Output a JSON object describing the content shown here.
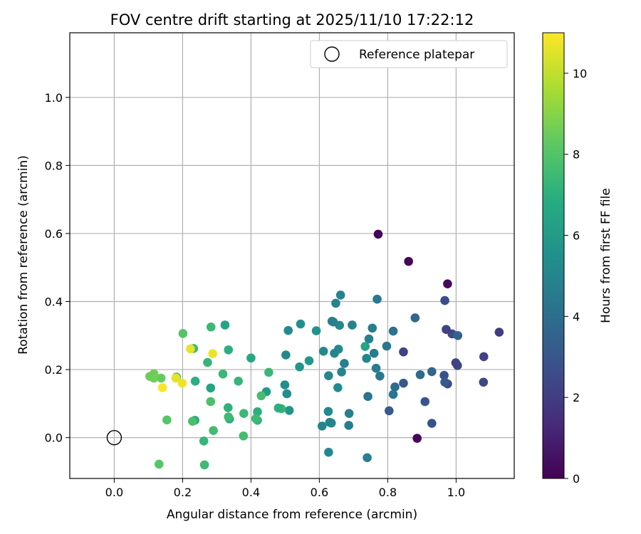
{
  "chart_data": {
    "type": "scatter",
    "title": "FOV centre drift starting at 2025/11/10 17:22:12",
    "xlabel": "Angular distance from reference (arcmin)",
    "ylabel": "Rotation from reference (arcmin)",
    "xlim": [
      -0.13,
      1.17
    ],
    "ylim": [
      -0.12,
      1.19
    ],
    "xticks": [
      "0.0",
      "0.2",
      "0.4",
      "0.6",
      "0.8",
      "1.0"
    ],
    "yticks": [
      "0.0",
      "0.2",
      "0.4",
      "0.6",
      "0.8",
      "1.0"
    ],
    "grid": true,
    "legend": {
      "position": "top-right",
      "entries": [
        "Reference platepar"
      ]
    },
    "reference_point": {
      "x": 0.0,
      "y": 0.0
    },
    "colorbar": {
      "label": "Hours from first FF file",
      "range": [
        0,
        11
      ],
      "ticks": [
        "0",
        "2",
        "4",
        "6",
        "8",
        "10"
      ],
      "colormap": "viridis"
    },
    "series": [
      {
        "points": [
          {
            "x": 0.772,
            "y": 0.598,
            "h": 0.1
          },
          {
            "x": 0.861,
            "y": 0.518,
            "h": 0.2
          },
          {
            "x": 0.975,
            "y": 0.452,
            "h": 0.3
          },
          {
            "x": 0.886,
            "y": -0.002,
            "h": 0.2
          },
          {
            "x": 1.126,
            "y": 0.31,
            "h": 2.0
          },
          {
            "x": 1.081,
            "y": 0.238,
            "h": 2.2
          },
          {
            "x": 1.08,
            "y": 0.163,
            "h": 2.4
          },
          {
            "x": 1.004,
            "y": 0.212,
            "h": 2.3
          },
          {
            "x": 0.999,
            "y": 0.22,
            "h": 2.2
          },
          {
            "x": 0.988,
            "y": 0.305,
            "h": 2.5
          },
          {
            "x": 0.971,
            "y": 0.318,
            "h": 2.1
          },
          {
            "x": 0.967,
            "y": 0.403,
            "h": 2.6
          },
          {
            "x": 0.965,
            "y": 0.183,
            "h": 2.8
          },
          {
            "x": 0.975,
            "y": 0.158,
            "h": 2.4
          },
          {
            "x": 0.909,
            "y": 0.106,
            "h": 2.9
          },
          {
            "x": 0.929,
            "y": 0.042,
            "h": 2.8
          },
          {
            "x": 0.846,
            "y": 0.252,
            "h": 2.2
          },
          {
            "x": 0.846,
            "y": 0.16,
            "h": 3.0
          },
          {
            "x": 0.804,
            "y": 0.079,
            "h": 3.2
          },
          {
            "x": 0.967,
            "y": 0.163,
            "h": 3.1
          },
          {
            "x": 1.005,
            "y": 0.3,
            "h": 3.5
          },
          {
            "x": 0.929,
            "y": 0.194,
            "h": 3.6
          },
          {
            "x": 0.895,
            "y": 0.185,
            "h": 3.8
          },
          {
            "x": 0.88,
            "y": 0.352,
            "h": 3.7
          },
          {
            "x": 0.821,
            "y": 0.149,
            "h": 4.0
          },
          {
            "x": 0.816,
            "y": 0.313,
            "h": 4.2
          },
          {
            "x": 0.816,
            "y": 0.127,
            "h": 4.3
          },
          {
            "x": 0.797,
            "y": 0.269,
            "h": 4.4
          },
          {
            "x": 0.777,
            "y": 0.181,
            "h": 4.5
          },
          {
            "x": 0.769,
            "y": 0.407,
            "h": 4.5
          },
          {
            "x": 0.766,
            "y": 0.204,
            "h": 4.6
          },
          {
            "x": 0.76,
            "y": 0.248,
            "h": 4.7
          },
          {
            "x": 0.755,
            "y": 0.322,
            "h": 4.6
          },
          {
            "x": 0.745,
            "y": 0.29,
            "h": 4.8
          },
          {
            "x": 0.742,
            "y": 0.121,
            "h": 4.2
          },
          {
            "x": 0.738,
            "y": 0.233,
            "h": 5.0
          },
          {
            "x": 0.74,
            "y": -0.059,
            "h": 4.8
          },
          {
            "x": 0.696,
            "y": 0.331,
            "h": 4.9
          },
          {
            "x": 0.687,
            "y": 0.071,
            "h": 4.8
          },
          {
            "x": 0.686,
            "y": 0.036,
            "h": 4.7
          },
          {
            "x": 0.673,
            "y": 0.218,
            "h": 4.8
          },
          {
            "x": 0.662,
            "y": 0.419,
            "h": 4.9
          },
          {
            "x": 0.665,
            "y": 0.193,
            "h": 5.0
          },
          {
            "x": 0.659,
            "y": 0.33,
            "h": 5.1
          },
          {
            "x": 0.656,
            "y": 0.26,
            "h": 5.2
          },
          {
            "x": 0.654,
            "y": 0.147,
            "h": 5.3
          },
          {
            "x": 0.648,
            "y": 0.395,
            "h": 4.9
          },
          {
            "x": 0.644,
            "y": 0.248,
            "h": 5.0
          },
          {
            "x": 0.641,
            "y": 0.34,
            "h": 4.9
          },
          {
            "x": 0.637,
            "y": 0.342,
            "h": 4.8
          },
          {
            "x": 0.635,
            "y": 0.043,
            "h": 4.9
          },
          {
            "x": 0.63,
            "y": 0.045,
            "h": 5.0
          },
          {
            "x": 0.627,
            "y": 0.182,
            "h": 5.1
          },
          {
            "x": 0.626,
            "y": 0.077,
            "h": 5.2
          },
          {
            "x": 0.627,
            "y": -0.043,
            "h": 5.1
          },
          {
            "x": 0.612,
            "y": 0.254,
            "h": 5.2
          },
          {
            "x": 0.608,
            "y": 0.034,
            "h": 5.0
          },
          {
            "x": 0.591,
            "y": 0.314,
            "h": 5.6
          },
          {
            "x": 0.57,
            "y": 0.226,
            "h": 5.8
          },
          {
            "x": 0.545,
            "y": 0.334,
            "h": 5.5
          },
          {
            "x": 0.542,
            "y": 0.208,
            "h": 5.7
          },
          {
            "x": 0.512,
            "y": 0.08,
            "h": 5.8
          },
          {
            "x": 0.509,
            "y": 0.315,
            "h": 5.3
          },
          {
            "x": 0.505,
            "y": 0.129,
            "h": 5.4
          },
          {
            "x": 0.502,
            "y": 0.243,
            "h": 5.2
          },
          {
            "x": 0.499,
            "y": 0.155,
            "h": 5.5
          },
          {
            "x": 0.734,
            "y": 0.268,
            "h": 6.4
          },
          {
            "x": 0.489,
            "y": 0.085,
            "h": 7.3
          },
          {
            "x": 0.48,
            "y": 0.087,
            "h": 7.0
          },
          {
            "x": 0.452,
            "y": 0.192,
            "h": 7.4
          },
          {
            "x": 0.445,
            "y": 0.135,
            "h": 6.0
          },
          {
            "x": 0.43,
            "y": 0.123,
            "h": 7.7
          },
          {
            "x": 0.419,
            "y": 0.076,
            "h": 7.0
          },
          {
            "x": 0.419,
            "y": 0.051,
            "h": 7.2
          },
          {
            "x": 0.414,
            "y": 0.056,
            "h": 7.5
          },
          {
            "x": 0.4,
            "y": 0.234,
            "h": 6.6
          },
          {
            "x": 0.379,
            "y": 0.071,
            "h": 7.4
          },
          {
            "x": 0.378,
            "y": 0.005,
            "h": 7.6
          },
          {
            "x": 0.363,
            "y": 0.166,
            "h": 7.3
          },
          {
            "x": 0.337,
            "y": 0.055,
            "h": 6.8
          },
          {
            "x": 0.333,
            "y": 0.088,
            "h": 7.1
          },
          {
            "x": 0.334,
            "y": 0.061,
            "h": 7.5
          },
          {
            "x": 0.334,
            "y": 0.258,
            "h": 7.0
          },
          {
            "x": 0.324,
            "y": 0.331,
            "h": 6.4
          },
          {
            "x": 0.318,
            "y": 0.187,
            "h": 7.4
          },
          {
            "x": 0.29,
            "y": 0.021,
            "h": 7.6
          },
          {
            "x": 0.283,
            "y": 0.325,
            "h": 7.4
          },
          {
            "x": 0.282,
            "y": 0.146,
            "h": 6.5
          },
          {
            "x": 0.282,
            "y": 0.106,
            "h": 7.8
          },
          {
            "x": 0.273,
            "y": 0.221,
            "h": 7.3
          },
          {
            "x": 0.264,
            "y": -0.08,
            "h": 7.5
          },
          {
            "x": 0.262,
            "y": -0.01,
            "h": 7.3
          },
          {
            "x": 0.237,
            "y": 0.166,
            "h": 7.0
          },
          {
            "x": 0.236,
            "y": 0.051,
            "h": 6.9
          },
          {
            "x": 0.232,
            "y": 0.262,
            "h": 7.5
          },
          {
            "x": 0.229,
            "y": 0.048,
            "h": 7.8
          },
          {
            "x": 0.201,
            "y": 0.306,
            "h": 8.0
          },
          {
            "x": 0.182,
            "y": 0.178,
            "h": 7.9
          },
          {
            "x": 0.154,
            "y": 0.052,
            "h": 8.1
          },
          {
            "x": 0.137,
            "y": 0.175,
            "h": 8.4
          },
          {
            "x": 0.131,
            "y": -0.078,
            "h": 8.1
          },
          {
            "x": 0.116,
            "y": 0.188,
            "h": 8.6
          },
          {
            "x": 0.111,
            "y": 0.178,
            "h": 8.3
          },
          {
            "x": 0.104,
            "y": 0.18,
            "h": 8.5
          },
          {
            "x": 0.116,
            "y": 0.175,
            "h": 8.6
          },
          {
            "x": 0.223,
            "y": 0.261,
            "h": 10.6
          },
          {
            "x": 0.288,
            "y": 0.247,
            "h": 10.7
          },
          {
            "x": 0.18,
            "y": 0.175,
            "h": 10.6
          },
          {
            "x": 0.199,
            "y": 0.16,
            "h": 10.7
          },
          {
            "x": 0.141,
            "y": 0.147,
            "h": 10.9
          }
        ]
      }
    ]
  }
}
